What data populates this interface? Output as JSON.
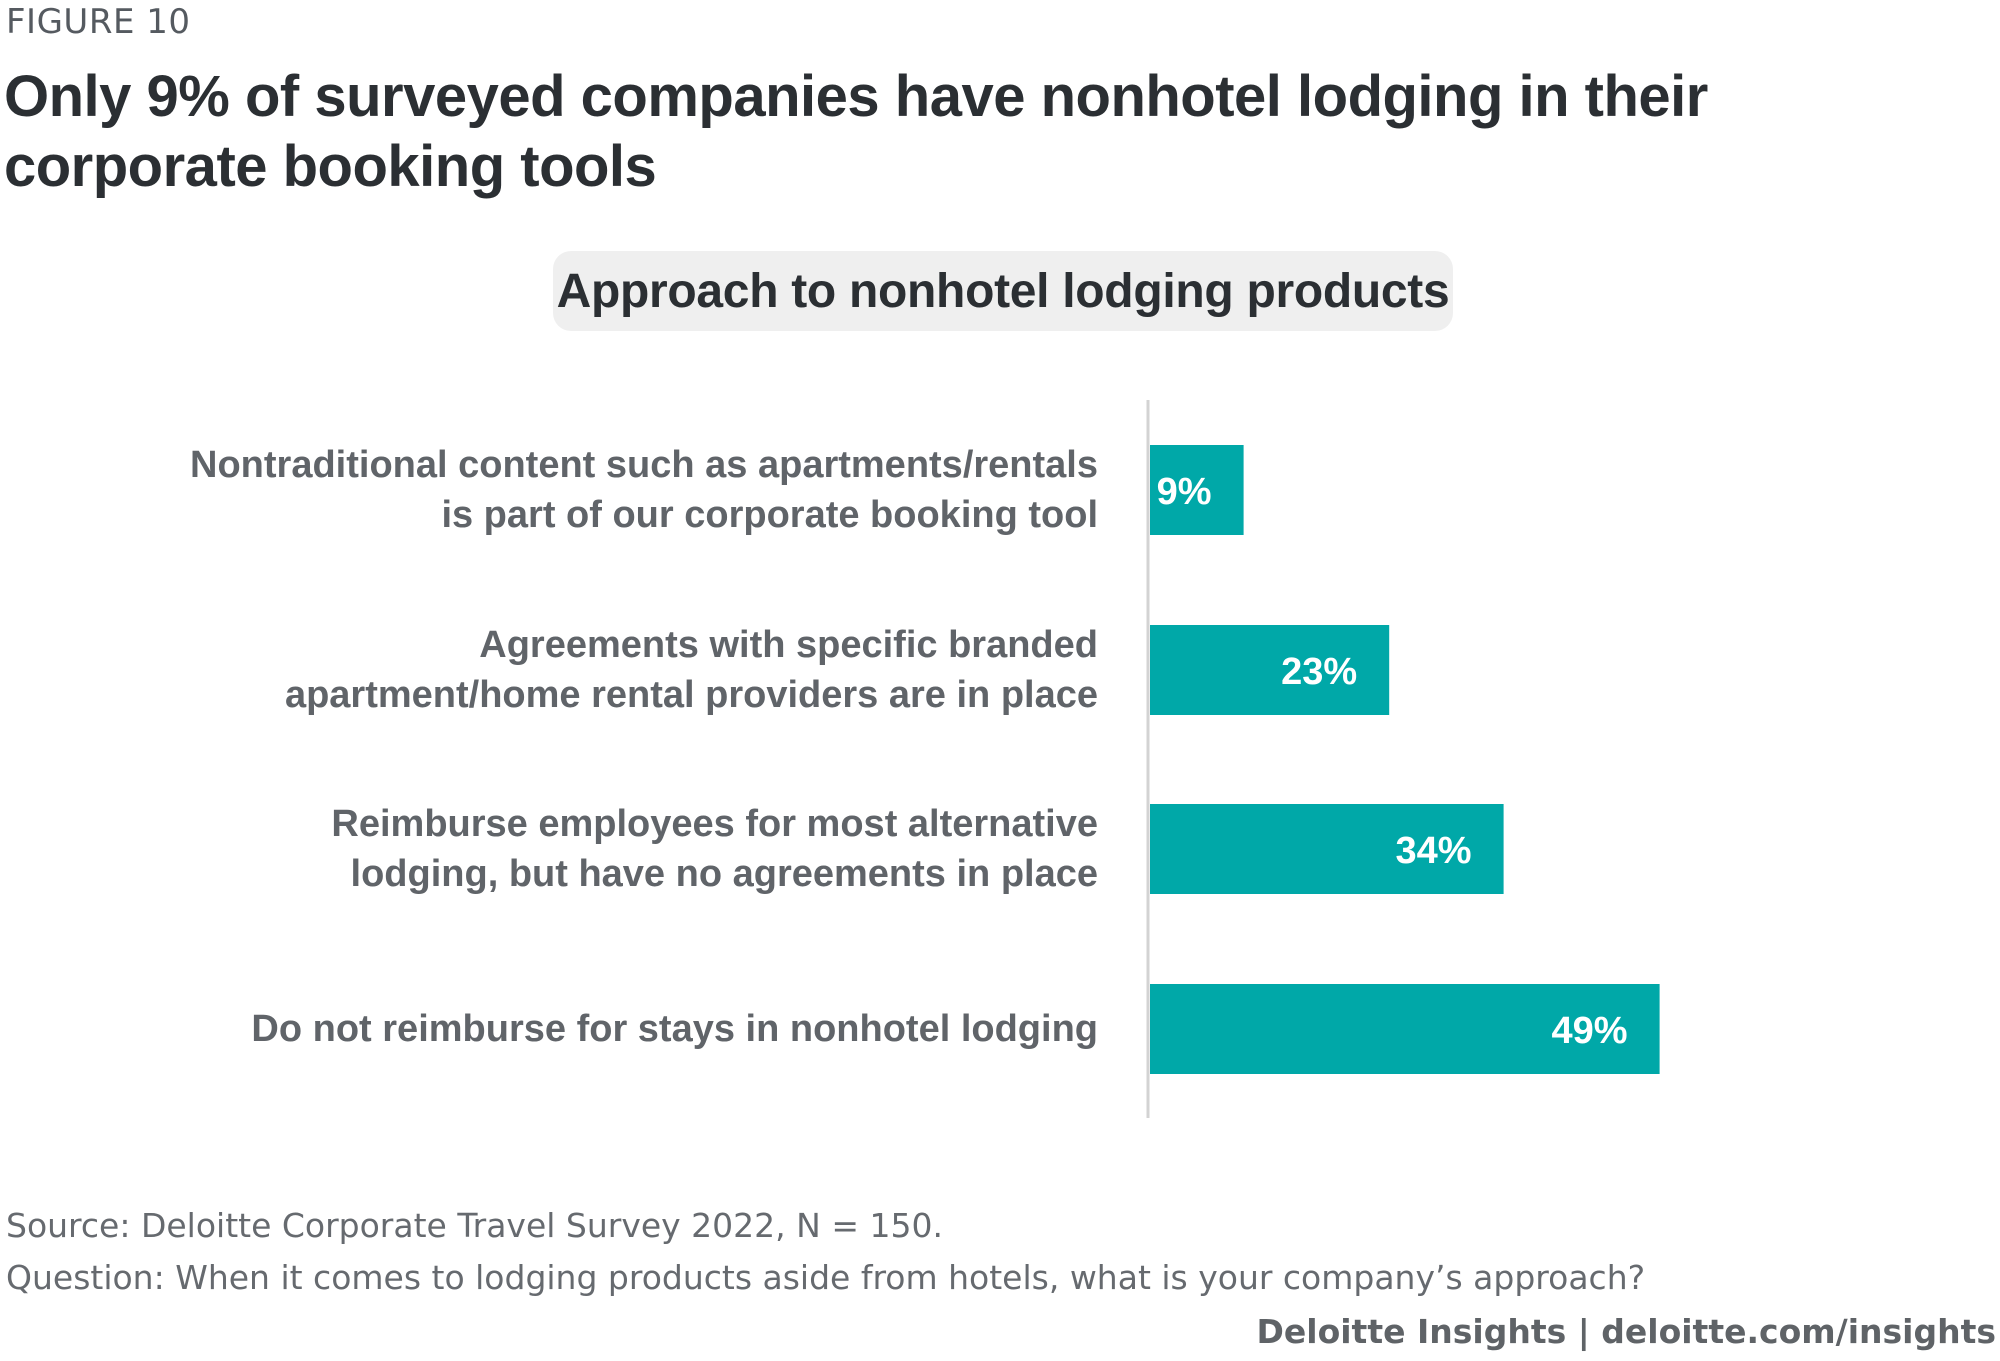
{
  "figure_label": "FIGURE 10",
  "title": "Only 9% of surveyed companies have nonhotel lodging in their corporate booking tools",
  "chart_data": {
    "type": "bar",
    "orientation": "horizontal",
    "title": "Approach to nonhotel lodging products",
    "categories": [
      [
        "Nontraditional content such as apartments/rentals",
        "is part of our corporate booking tool"
      ],
      [
        "Agreements with specific branded",
        "apartment/home rental providers are in place"
      ],
      [
        "Reimburse employees for most alternative",
        "lodging, but have no agreements in place"
      ],
      [
        "Do not reimburse for stays in nonhotel lodging"
      ]
    ],
    "values": [
      9,
      23,
      34,
      49
    ],
    "value_labels": [
      "9%",
      "23%",
      "34%",
      "49%"
    ],
    "unit": "%",
    "xlim": [
      0,
      100
    ],
    "grid": false,
    "legend": "none",
    "bar_color": "#00a8a8"
  },
  "footer": {
    "source": "Source: Deloitte Corporate Travel Survey 2022, N = 150.",
    "question": "Question: When it comes to lodging products aside from hotels, what is your company’s approach?",
    "brand": "Deloitte Insights | deloitte.com/insights"
  }
}
